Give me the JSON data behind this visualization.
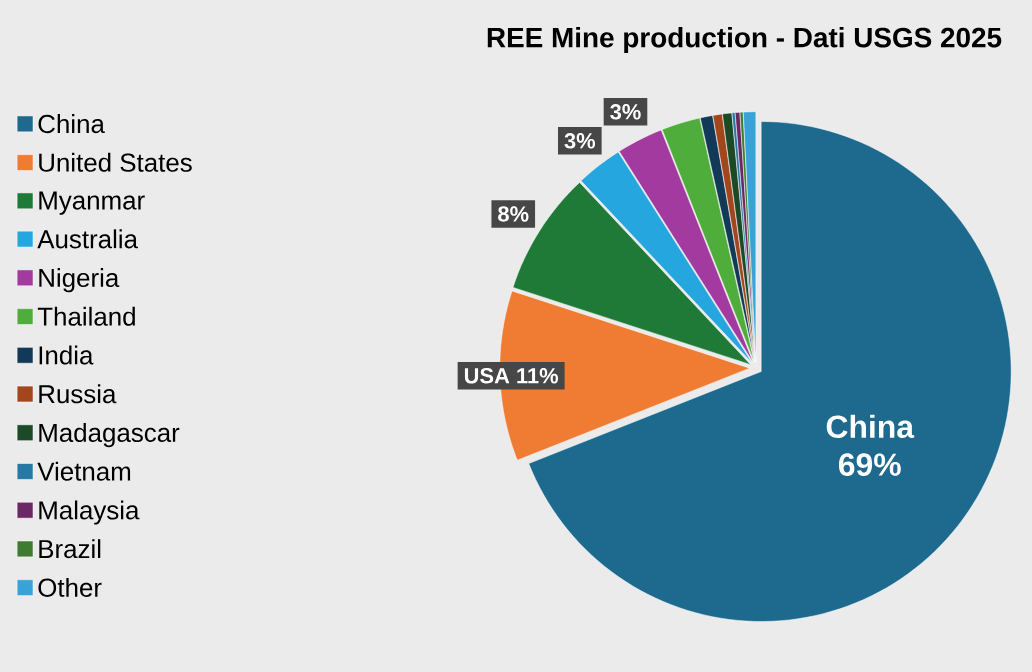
{
  "chart_data": {
    "type": "pie",
    "title": "REE Mine production - Dati USGS 2025",
    "categories": [
      "China",
      "United States",
      "Myanmar",
      "Australia",
      "Nigeria",
      "Thailand",
      "India",
      "Russia",
      "Madagascar",
      "Vietnam",
      "Malaysia",
      "Brazil",
      "Other"
    ],
    "values": [
      69,
      11,
      8,
      3,
      3,
      2.5,
      0.8,
      0.6,
      0.6,
      0.2,
      0.3,
      0.2,
      0.8
    ],
    "colors": [
      "#1d6a8e",
      "#f07b32",
      "#1f7a38",
      "#26a6df",
      "#a33a9f",
      "#4fae3b",
      "#123a58",
      "#a2461d",
      "#1c4a27",
      "#2878a6",
      "#6a2865",
      "#3e7d2f",
      "#39a2d6"
    ],
    "value_labels": [
      "China 69%",
      "USA 11%",
      "8%",
      "3%",
      "3%",
      null,
      null,
      null,
      null,
      null,
      null,
      null,
      null
    ],
    "legend": "left"
  }
}
